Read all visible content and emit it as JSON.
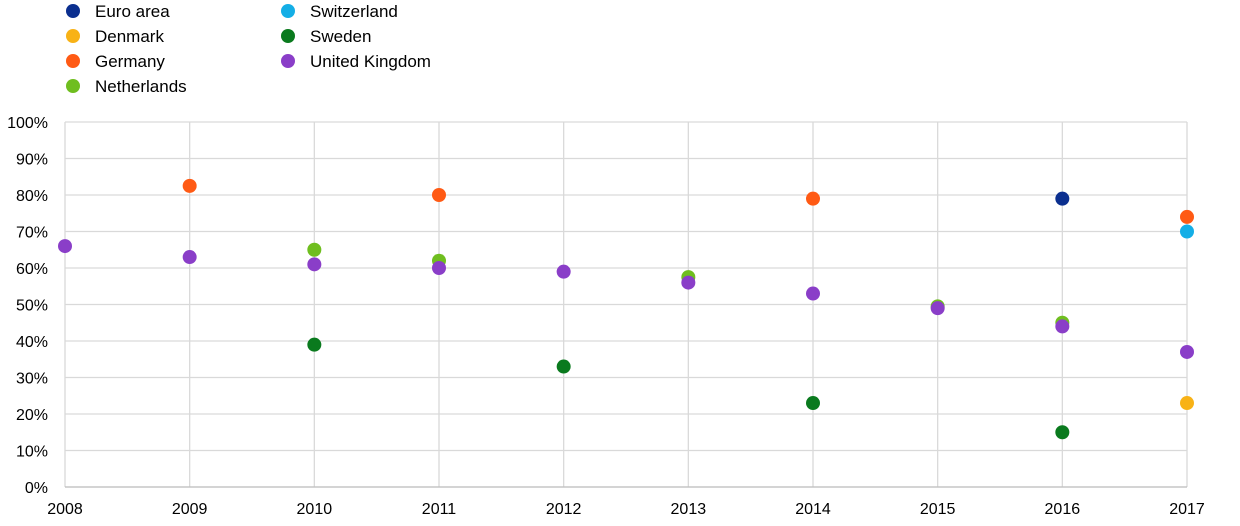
{
  "chart_data": {
    "type": "scatter",
    "x": [
      2008,
      2009,
      2010,
      2011,
      2012,
      2013,
      2014,
      2015,
      2016,
      2017
    ],
    "x_tick_labels": [
      "2008",
      "2009",
      "2010",
      "2011",
      "2012",
      "2013",
      "2014",
      "2015",
      "2016",
      "2017"
    ],
    "y_tick_labels": [
      "0%",
      "10%",
      "20%",
      "30%",
      "40%",
      "50%",
      "60%",
      "70%",
      "80%",
      "90%",
      "100%"
    ],
    "ylim": [
      0,
      100
    ],
    "xlim": [
      2008,
      2017
    ],
    "grid": true,
    "legend_position": "top-left",
    "series": [
      {
        "name": "Euro area",
        "color": "#0b2f8f",
        "points": [
          [
            2016,
            79
          ]
        ]
      },
      {
        "name": "Denmark",
        "color": "#f8b216",
        "points": [
          [
            2017,
            23
          ]
        ]
      },
      {
        "name": "Germany",
        "color": "#ff5a14",
        "points": [
          [
            2009,
            82.5
          ],
          [
            2011,
            80
          ],
          [
            2014,
            79
          ],
          [
            2017,
            74
          ]
        ]
      },
      {
        "name": "Netherlands",
        "color": "#6fbe1f",
        "points": [
          [
            2010,
            65
          ],
          [
            2011,
            62
          ],
          [
            2013,
            57.5
          ],
          [
            2015,
            49.5
          ],
          [
            2016,
            45
          ]
        ]
      },
      {
        "name": "Switzerland",
        "color": "#14aee6",
        "points": [
          [
            2017,
            70
          ]
        ]
      },
      {
        "name": "Sweden",
        "color": "#0a7a1e",
        "points": [
          [
            2010,
            39
          ],
          [
            2012,
            33
          ],
          [
            2014,
            23
          ],
          [
            2016,
            15
          ]
        ]
      },
      {
        "name": "United Kingdom",
        "color": "#8a3ec8",
        "points": [
          [
            2008,
            66
          ],
          [
            2009,
            63
          ],
          [
            2010,
            61
          ],
          [
            2011,
            60
          ],
          [
            2012,
            59
          ],
          [
            2013,
            56
          ],
          [
            2014,
            53
          ],
          [
            2015,
            49
          ],
          [
            2016,
            44
          ],
          [
            2017,
            37
          ]
        ]
      }
    ]
  }
}
